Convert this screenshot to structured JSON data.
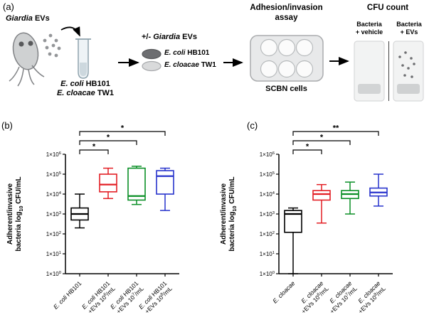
{
  "figure_labels": {
    "a": "(a)",
    "b": "(b)",
    "c": "(c)"
  },
  "schematic": {
    "giardia_evs": {
      "italic": "Giardia",
      "rest": " EVs"
    },
    "inoculum": [
      {
        "italic": "E. coli",
        "rest": " HB101"
      },
      {
        "italic": "E. cloacae",
        "rest": " TW1"
      }
    ],
    "treatment": {
      "pre": "+/- ",
      "italic": "Giardia",
      "rest": " EVs"
    },
    "legend": [
      {
        "italic": "E. coli",
        "rest": " HB101",
        "color": "#6d6e71"
      },
      {
        "italic": "E. cloacae",
        "rest": " TW1",
        "color": "#d9dadb"
      }
    ],
    "assay_title": [
      "Adhesion/invasion",
      "assay"
    ],
    "scbn_label": "SCBN cells",
    "cfu_title": "CFU count",
    "cfu_conditions": [
      {
        "line1": "Bacteria",
        "line2": "+ vehicle"
      },
      {
        "line1": "Bacteria",
        "line2": "+ EVs"
      }
    ]
  },
  "chart_data": [
    {
      "type": "box",
      "panel": "b",
      "y_scale": "log10",
      "ylim": [
        1,
        1000000
      ],
      "ylabel_lines": [
        "Adherent/invasive",
        "bacteria log_10 CFU/mL"
      ],
      "ytick_labels": [
        "1×10^0",
        "1×10^1",
        "1×10^2",
        "1×10^3",
        "1×10^4",
        "1×10^5",
        "1×10^6"
      ],
      "categories": [
        {
          "species": "E. coli",
          "strain": "HB101",
          "treatment": ""
        },
        {
          "species": "E. coli",
          "strain": "HB101",
          "treatment": "+EVs 10^6/mL"
        },
        {
          "species": "E. coli",
          "strain": "HB101",
          "treatment": "+EVs 10^7/mL"
        },
        {
          "species": "E. coli",
          "strain": "HB101",
          "treatment": "+EVs 10^8/mL"
        }
      ],
      "series": [
        {
          "name": "E. coli HB101",
          "color": "#000000",
          "whislo": 200,
          "q1": 500,
          "med": 1000,
          "q3": 2000,
          "whishi": 10000
        },
        {
          "name": "E. coli HB101 +EVs 10^6/mL",
          "color": "#e31e24",
          "whislo": 6000,
          "q1": 13000,
          "med": 30000,
          "q3": 100000,
          "whishi": 200000
        },
        {
          "name": "E. coli HB101 +EVs 10^7/mL",
          "color": "#0a8f26",
          "whislo": 3000,
          "q1": 5000,
          "med": 8000,
          "q3": 200000,
          "whishi": 250000
        },
        {
          "name": "E. coli HB101 +EVs 10^8/mL",
          "color": "#2733cc",
          "whislo": 1500,
          "q1": 10000,
          "med": 80000,
          "q3": 150000,
          "whishi": 200000
        }
      ],
      "significance": [
        {
          "from": 0,
          "to": 1,
          "label": "*"
        },
        {
          "from": 0,
          "to": 2,
          "label": "*"
        },
        {
          "from": 0,
          "to": 3,
          "label": "*"
        }
      ]
    },
    {
      "type": "box",
      "panel": "c",
      "y_scale": "log10",
      "ylim": [
        1,
        1000000
      ],
      "ylabel_lines": [
        "Adherent/invasive",
        "bacteria log_10 CFU/mL"
      ],
      "ytick_labels": [
        "1×10^0",
        "1×10^1",
        "1×10^2",
        "1×10^3",
        "1×10^4",
        "1×10^5",
        "1×10^6"
      ],
      "categories": [
        {
          "species": "E. cloacae",
          "strain": "",
          "treatment": ""
        },
        {
          "species": "E. cloacae",
          "strain": "",
          "treatment": "+EVs 10^6/mL"
        },
        {
          "species": "E. cloacae",
          "strain": "",
          "treatment": "+EVs 10^7/mL"
        },
        {
          "species": "E. cloacae",
          "strain": "",
          "treatment": "+EVs 10^8/mL"
        }
      ],
      "series": [
        {
          "name": "E. cloacae",
          "color": "#000000",
          "whislo": 1,
          "q1": 120,
          "med": 1000,
          "q3": 1500,
          "whishi": 2000
        },
        {
          "name": "E. cloacae +EVs 10^6/mL",
          "color": "#e31e24",
          "whislo": 350,
          "q1": 5000,
          "med": 10000,
          "q3": 15000,
          "whishi": 30000
        },
        {
          "name": "E. cloacae +EVs 10^7/mL",
          "color": "#0a8f26",
          "whislo": 1000,
          "q1": 6000,
          "med": 10000,
          "q3": 15000,
          "whishi": 40000
        },
        {
          "name": "E. cloacae +EVs 10^8/mL",
          "color": "#2733cc",
          "whislo": 2500,
          "q1": 8000,
          "med": 12000,
          "q3": 20000,
          "whishi": 100000
        }
      ],
      "significance": [
        {
          "from": 0,
          "to": 1,
          "label": "*"
        },
        {
          "from": 0,
          "to": 2,
          "label": "*"
        },
        {
          "from": 0,
          "to": 3,
          "label": "**"
        }
      ]
    }
  ]
}
